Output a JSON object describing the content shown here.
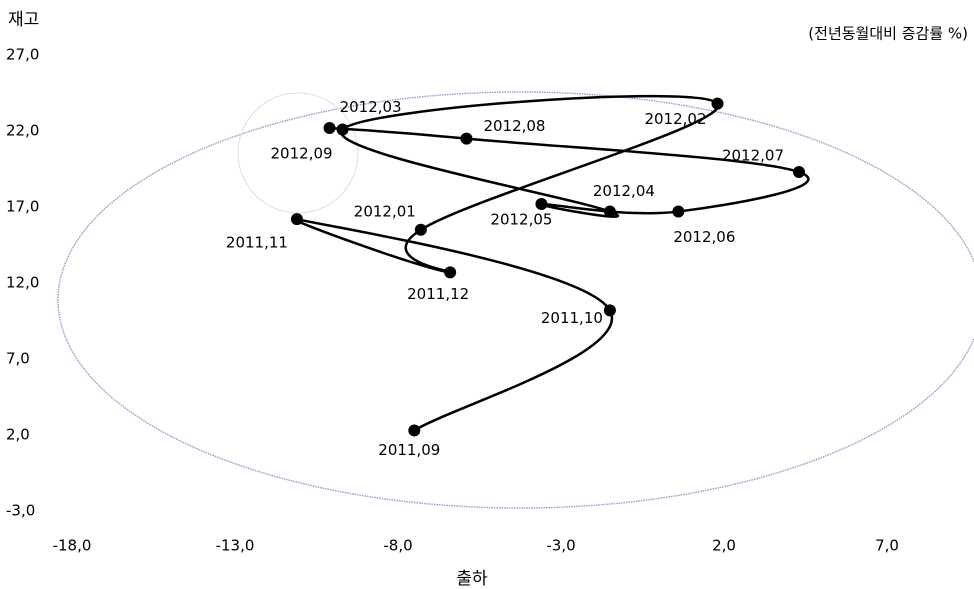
{
  "chart_data": {
    "type": "line",
    "title": "재고",
    "subtitle": "(전년동월대비 증감률 %)",
    "x_label": "출하",
    "categories": [
      "2011,09",
      "2011,10",
      "2011,11",
      "2011,12",
      "2012,01",
      "2012,02",
      "2012,03",
      "2012,04",
      "2012,05",
      "2012,06",
      "2012,07",
      "2012,08",
      "2012,09"
    ],
    "x": [
      -7.5,
      -1.5,
      -11.1,
      -6.4,
      -7.3,
      1.8,
      -9.7,
      -1.5,
      -3.6,
      0.6,
      4.3,
      -5.9,
      -10.1
    ],
    "values": [
      2.3,
      10.2,
      16.2,
      12.7,
      15.5,
      23.8,
      22.1,
      16.7,
      17.2,
      16.7,
      19.3,
      21.5,
      22.2
    ],
    "color": "#000000",
    "xlim": [
      -18,
      9.5
    ],
    "ylim": [
      -3,
      27
    ],
    "xticks": [
      {
        "value": -18,
        "label": "-18,0"
      },
      {
        "value": -13,
        "label": "-13,0"
      },
      {
        "value": -8,
        "label": "-8,0"
      },
      {
        "value": -3,
        "label": "-3,0"
      },
      {
        "value": 2,
        "label": "2,0"
      },
      {
        "value": 7,
        "label": "7,0"
      }
    ],
    "yticks": [
      {
        "value": 27,
        "label": "27,0"
      },
      {
        "value": 22,
        "label": "22,0"
      },
      {
        "value": 17,
        "label": "17,0"
      },
      {
        "value": 12,
        "label": "12,0"
      },
      {
        "value": 7,
        "label": "7,0"
      },
      {
        "value": 2,
        "label": "2,0"
      },
      {
        "value": -3,
        "label": "-3,0"
      }
    ]
  }
}
